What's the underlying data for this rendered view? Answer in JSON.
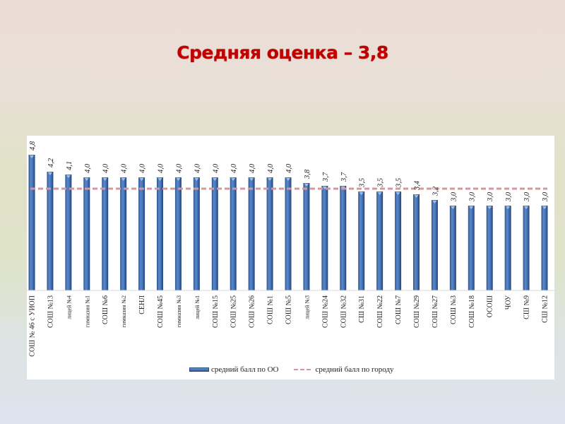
{
  "title": "Средняя оценка – 3,8",
  "chart_data": {
    "type": "bar",
    "title": "Средняя оценка – 3,8",
    "xlabel": "",
    "ylabel": "",
    "ylim": [
      0,
      5
    ],
    "grid": false,
    "legend_position": "bottom",
    "categories": [
      "СОШ № 46 с УИОП",
      "СОШ №13",
      "лицей №4",
      "гимназия №1",
      "СОШ №6",
      "гимназия №2",
      "СЕНЛ",
      "СОШ №45",
      "гимназия №3",
      "лицей №1",
      "СОШ №15",
      "СОШ №25",
      "СОШ №26",
      "СОШ №1",
      "СОШ №5",
      "лицей №3",
      "СОШ №24",
      "СОШ №32",
      "СШ №31",
      "СОШ №22",
      "СОШ №7",
      "СОШ №29",
      "СОШ №27",
      "СОШ №3",
      "СОШ №18",
      "ОСОШ",
      "ЧОУ",
      "СШ №9",
      "СШ №12"
    ],
    "series": [
      {
        "name": "средний балл по ОО",
        "type": "bar",
        "color": "#3f6db0",
        "values": [
          4.8,
          4.2,
          4.1,
          4.0,
          4.0,
          4.0,
          4.0,
          4.0,
          4.0,
          4.0,
          4.0,
          4.0,
          4.0,
          4.0,
          4.0,
          3.8,
          3.7,
          3.7,
          3.5,
          3.5,
          3.5,
          3.4,
          3.2,
          3.0,
          3.0,
          3.0,
          3.0,
          3.0,
          3.0
        ],
        "labels": [
          "4,8",
          "4,2",
          "4,1",
          "4,0",
          "4,0",
          "4,0",
          "4,0",
          "4,0",
          "4,0",
          "4,0",
          "4,0",
          "4,0",
          "4,0",
          "4,0",
          "4,0",
          "3,8",
          "3,7",
          "3,7",
          "3,5",
          "3,5",
          "3,5",
          "3,4",
          "3,2",
          "3,0",
          "3,0",
          "3,0",
          "3,0",
          "3,0",
          "3,0"
        ]
      },
      {
        "name": "средний балл по городу",
        "type": "line",
        "style": "dashed",
        "color": "#d4989c",
        "value": 3.8
      }
    ]
  },
  "legend": {
    "items": [
      {
        "label": "средний балл по ОО"
      },
      {
        "label": "средний балл по городу"
      }
    ]
  }
}
